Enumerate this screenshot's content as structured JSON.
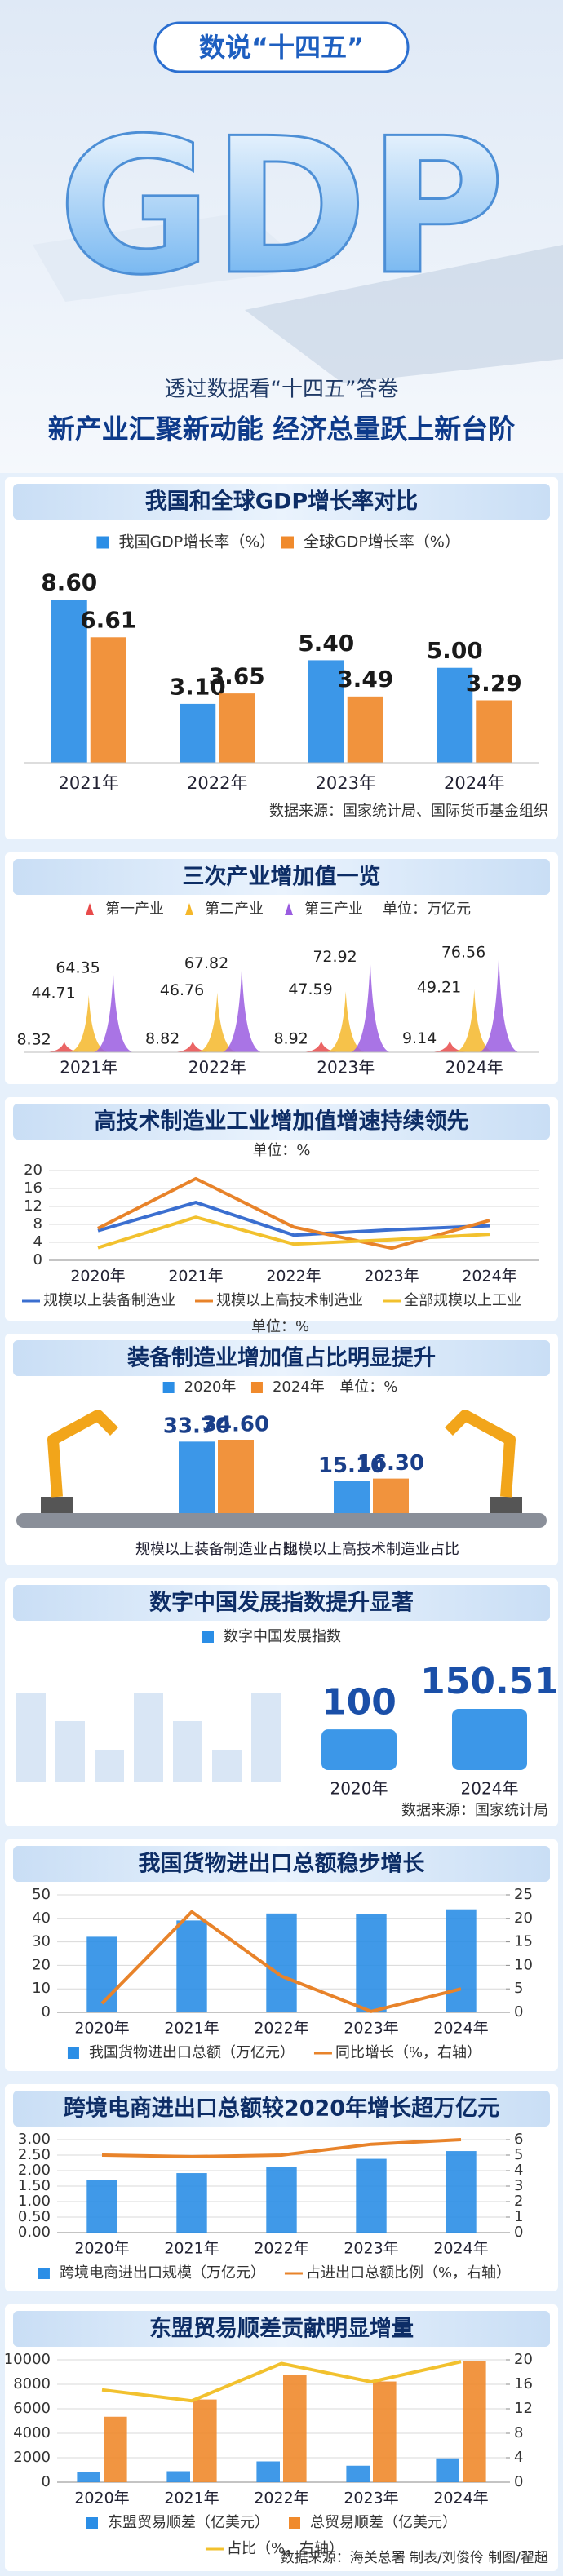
{
  "header": {
    "badge": "数说“十四五”",
    "big": "GDP",
    "subtitle": "透过数据看“十四五”答卷",
    "title": "新产业汇聚新动能 经济总量跃上新台阶"
  },
  "chart_data": [
    {
      "type": "bar",
      "title": "我国和全球GDP增长率对比",
      "categories": [
        "2021年",
        "2022年",
        "2023年",
        "2024年"
      ],
      "series": [
        {
          "name": "我国GDP增长率（%）",
          "color": "#2b8ee6",
          "values": [
            8.6,
            3.1,
            5.4,
            5.0
          ],
          "value_labels": [
            "8.60",
            "3.10",
            "5.40",
            "5.00"
          ]
        },
        {
          "name": "全球GDP增长率（%）",
          "color": "#f08a2c",
          "values": [
            6.61,
            3.65,
            3.49,
            3.29
          ]
        }
      ],
      "source": "数据来源：国家统计局、国际货币基金组织"
    },
    {
      "type": "peak",
      "title": "三次产业增加值一览",
      "unit": "单位：万亿元",
      "categories": [
        "2021年",
        "2022年",
        "2023年",
        "2024年"
      ],
      "series": [
        {
          "name": "第一产业",
          "color": "#e84a4a",
          "values": [
            8.32,
            8.82,
            8.92,
            9.14
          ]
        },
        {
          "name": "第二产业",
          "color": "#f5b72a",
          "values": [
            44.71,
            46.76,
            47.59,
            49.21
          ]
        },
        {
          "name": "第三产业",
          "color": "#9a5ce0",
          "values": [
            64.35,
            67.82,
            72.92,
            76.56
          ]
        }
      ]
    },
    {
      "type": "line",
      "title": "高技术制造业工业增加值增速持续领先",
      "unit": "单位：%",
      "categories": [
        "2020年",
        "2021年",
        "2022年",
        "2023年",
        "2024年"
      ],
      "ylim": [
        0,
        20
      ],
      "yticks": [
        0,
        4,
        8,
        12,
        16,
        20
      ],
      "grid": true,
      "series": [
        {
          "name": "规模以上装备制造业",
          "color": "#3b6fd0",
          "values": [
            6.6,
            12.9,
            5.6,
            6.8,
            7.7
          ]
        },
        {
          "name": "规模以上高技术制造业",
          "color": "#e8832a",
          "values": [
            7.1,
            18.2,
            7.4,
            2.7,
            8.9
          ]
        },
        {
          "name": "全部规模以上工业",
          "color": "#f2c12e",
          "values": [
            2.8,
            9.6,
            3.6,
            4.6,
            5.8
          ]
        }
      ]
    },
    {
      "type": "bar",
      "title": "装备制造业增加值占比明显提升",
      "unit": "单位：%",
      "categories": [
        "规模以上装备制造业占比",
        "规模以上高技术制造业占比"
      ],
      "series": [
        {
          "name": "2020年",
          "color": "#2b8ee6",
          "values": [
            33.7,
            15.1
          ],
          "value_labels": [
            "33.70",
            "15.10"
          ]
        },
        {
          "name": "2024年",
          "color": "#f08a2c",
          "values": [
            34.6,
            16.3
          ],
          "value_labels": [
            "34.60",
            "16.30"
          ]
        }
      ]
    },
    {
      "type": "bar",
      "title": "数字中国发展指数提升显著",
      "categories": [
        "2020年",
        "2024年"
      ],
      "series": [
        {
          "name": "数字中国发展指数",
          "color": "#2b8ee6",
          "values": [
            100,
            150.51
          ]
        }
      ],
      "source": "数据来源：国家统计局"
    },
    {
      "type": "combo",
      "title": "我国货物进出口总额稳步增长",
      "categories": [
        "2020年",
        "2021年",
        "2022年",
        "2023年",
        "2024年"
      ],
      "ylim": [
        0,
        50
      ],
      "yticks": [
        0,
        10,
        20,
        30,
        40,
        50
      ],
      "y2lim": [
        0,
        25
      ],
      "y2ticks": [
        0,
        5,
        10,
        15,
        20,
        25
      ],
      "grid": true,
      "series": [
        {
          "name": "我国货物进出口总额（万亿元）",
          "color": "#2b8ee6",
          "values": [
            32.16,
            39.1,
            42.07,
            41.76,
            43.85
          ]
        },
        {
          "name": "同比增长（%，右轴）",
          "color": "#e8832a",
          "axis": "y2",
          "values": [
            1.9,
            21.4,
            7.7,
            0.2,
            5.0
          ]
        }
      ]
    },
    {
      "type": "combo",
      "title": "跨境电商进出口总额较2020年增长超万亿元",
      "categories": [
        "2020年",
        "2021年",
        "2022年",
        "2023年",
        "2024年"
      ],
      "ylim": [
        0,
        3
      ],
      "yticks": [
        {
          "value": 0,
          "label": "0.00"
        },
        {
          "value": 0.5,
          "label": "0.50"
        },
        {
          "value": 1,
          "label": "1.00"
        },
        {
          "value": 1.5,
          "label": "1.50"
        },
        {
          "value": 2,
          "label": "2.00"
        },
        {
          "value": 2.5,
          "label": "2.50"
        },
        {
          "value": 3,
          "label": "3.00"
        }
      ],
      "y2lim": [
        0,
        6
      ],
      "y2ticks": [
        0,
        1,
        2,
        3,
        4,
        5,
        6
      ],
      "grid": true,
      "series": [
        {
          "name": "跨境电商进出口规模（万亿元）",
          "color": "#2b8ee6",
          "values": [
            1.69,
            1.92,
            2.11,
            2.38,
            2.63
          ]
        },
        {
          "name": "占进出口总额比例（%，右轴）",
          "color": "#e8832a",
          "axis": "y2",
          "values": [
            5.0,
            4.9,
            5.0,
            5.7,
            6.0
          ]
        }
      ]
    },
    {
      "type": "combo",
      "title": "东盟贸易顺差贡献明显增量",
      "categories": [
        "2020年",
        "2021年",
        "2022年",
        "2023年",
        "2024年"
      ],
      "ylim": [
        0,
        10000
      ],
      "yticks": [
        0,
        2000,
        4000,
        6000,
        8000,
        10000
      ],
      "y2lim": [
        0,
        20
      ],
      "y2ticks": [
        0,
        4,
        8,
        12,
        16,
        20
      ],
      "grid": true,
      "series": [
        {
          "name": "东盟贸易顺差（亿美元）",
          "color": "#2b8ee6",
          "values": [
            810,
            900,
            1700,
            1350,
            1950
          ]
        },
        {
          "name": "总贸易顺差（亿美元）",
          "color": "#f08a2c",
          "values": [
            5350,
            6760,
            8770,
            8230,
            9920
          ]
        },
        {
          "name": "占比（%，右轴）",
          "color": "#f2c12e",
          "axis": "y2",
          "values": [
            15.1,
            13.3,
            19.4,
            16.4,
            19.7
          ]
        }
      ],
      "source": "数据来源：海关总署 制表/刘俊伶 制图/翟超"
    }
  ]
}
